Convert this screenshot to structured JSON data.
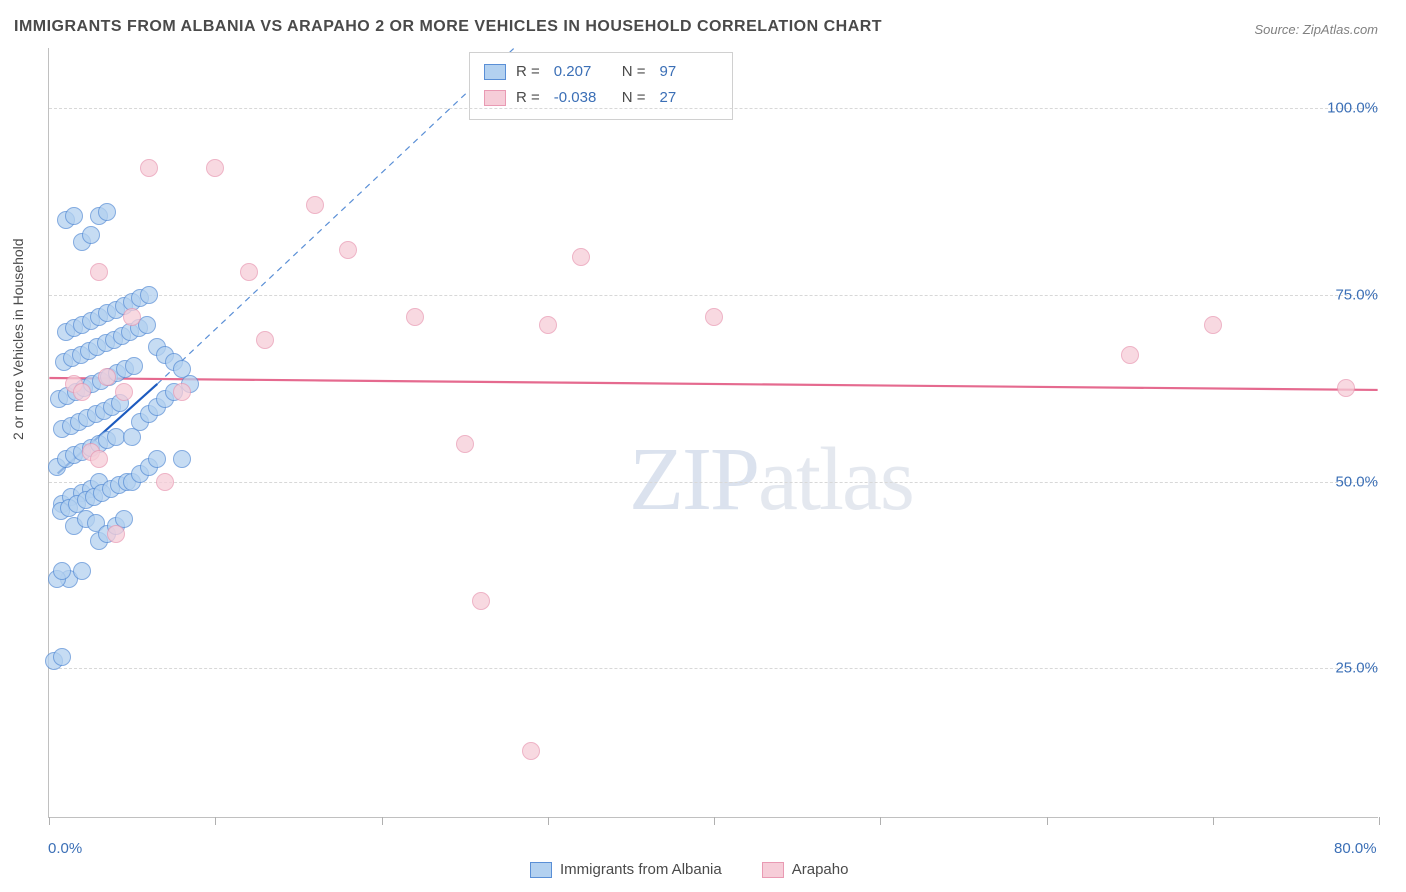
{
  "title": "IMMIGRANTS FROM ALBANIA VS ARAPAHO 2 OR MORE VEHICLES IN HOUSEHOLD CORRELATION CHART",
  "source": "Source: ZipAtlas.com",
  "watermark_bold": "ZIP",
  "watermark_thin": "atlas",
  "chart": {
    "type": "scatter",
    "background_color": "#ffffff",
    "grid_color": "#d8d8d8",
    "axis_color": "#c0c0c0",
    "tick_label_color": "#3b6fb6",
    "ylabel": "2 or more Vehicles in Household",
    "xlim": [
      0,
      80
    ],
    "ylim": [
      5,
      108
    ],
    "x_ticks": [
      0,
      10,
      20,
      30,
      40,
      50,
      60,
      70,
      80
    ],
    "x_tick_labels": {
      "0": "0.0%",
      "80": "80.0%"
    },
    "y_ticks": [
      25,
      50,
      75,
      100
    ],
    "y_tick_labels": {
      "25": "25.0%",
      "50": "50.0%",
      "75": "75.0%",
      "100": "100.0%"
    },
    "marker_radius": 9,
    "label_fontsize": 14,
    "tick_fontsize": 15,
    "title_fontsize": 16
  },
  "series": [
    {
      "name": "Immigrants from Albania",
      "fill": "#b3d1f0",
      "stroke": "#5a8fd6",
      "line_color": "#1d5bbf",
      "r_label": "R =",
      "r_value": "0.207",
      "n_label": "N =",
      "n_value": "97",
      "trend": {
        "x1": 0.5,
        "y1": 51,
        "x2": 6.5,
        "y2": 63,
        "dashed_ext": {
          "x2": 28,
          "y2": 108
        }
      },
      "points": [
        [
          0.3,
          26
        ],
        [
          0.8,
          26.5
        ],
        [
          1.2,
          37
        ],
        [
          2,
          38
        ],
        [
          1.5,
          44
        ],
        [
          2.2,
          45
        ],
        [
          2.8,
          44.5
        ],
        [
          0.8,
          47
        ],
        [
          1.3,
          48
        ],
        [
          2,
          48.5
        ],
        [
          2.5,
          49
        ],
        [
          3,
          50
        ],
        [
          0.5,
          52
        ],
        [
          1,
          53
        ],
        [
          1.5,
          53.5
        ],
        [
          2,
          54
        ],
        [
          2.5,
          54.5
        ],
        [
          3,
          55
        ],
        [
          3.5,
          55.5
        ],
        [
          4,
          56
        ],
        [
          0.8,
          57
        ],
        [
          1.3,
          57.5
        ],
        [
          1.8,
          58
        ],
        [
          2.3,
          58.5
        ],
        [
          2.8,
          59
        ],
        [
          3.3,
          59.5
        ],
        [
          3.8,
          60
        ],
        [
          4.3,
          60.5
        ],
        [
          0.6,
          61
        ],
        [
          1.1,
          61.5
        ],
        [
          1.6,
          62
        ],
        [
          2.1,
          62.5
        ],
        [
          2.6,
          63
        ],
        [
          3.1,
          63.5
        ],
        [
          3.6,
          64
        ],
        [
          4.1,
          64.5
        ],
        [
          4.6,
          65
        ],
        [
          5.1,
          65.5
        ],
        [
          0.9,
          66
        ],
        [
          1.4,
          66.5
        ],
        [
          1.9,
          67
        ],
        [
          2.4,
          67.5
        ],
        [
          2.9,
          68
        ],
        [
          3.4,
          68.5
        ],
        [
          3.9,
          69
        ],
        [
          4.4,
          69.5
        ],
        [
          4.9,
          70
        ],
        [
          5.4,
          70.5
        ],
        [
          5.9,
          71
        ],
        [
          0.7,
          46
        ],
        [
          1.2,
          46.5
        ],
        [
          1.7,
          47
        ],
        [
          2.2,
          47.5
        ],
        [
          2.7,
          48
        ],
        [
          3.2,
          48.5
        ],
        [
          3.7,
          49
        ],
        [
          4.2,
          49.5
        ],
        [
          4.7,
          50
        ],
        [
          5,
          56
        ],
        [
          5.5,
          58
        ],
        [
          6,
          59
        ],
        [
          6.5,
          60
        ],
        [
          7,
          61
        ],
        [
          7.5,
          62
        ],
        [
          8,
          53
        ],
        [
          8.5,
          63
        ],
        [
          5,
          50
        ],
        [
          5.5,
          51
        ],
        [
          6,
          52
        ],
        [
          6.5,
          53
        ],
        [
          3,
          42
        ],
        [
          3.5,
          43
        ],
        [
          4,
          44
        ],
        [
          4.5,
          45
        ],
        [
          2,
          82
        ],
        [
          2.5,
          83
        ],
        [
          3,
          85.5
        ],
        [
          3.5,
          86
        ],
        [
          1,
          85
        ],
        [
          1.5,
          85.5
        ],
        [
          1,
          70
        ],
        [
          1.5,
          70.5
        ],
        [
          2,
          71
        ],
        [
          2.5,
          71.5
        ],
        [
          3,
          72
        ],
        [
          3.5,
          72.5
        ],
        [
          4,
          73
        ],
        [
          4.5,
          73.5
        ],
        [
          5,
          74
        ],
        [
          5.5,
          74.5
        ],
        [
          6,
          75
        ],
        [
          6.5,
          68
        ],
        [
          7,
          67
        ],
        [
          7.5,
          66
        ],
        [
          8,
          65
        ],
        [
          0.5,
          37
        ],
        [
          0.8,
          38
        ]
      ]
    },
    {
      "name": "Arapaho",
      "fill": "#f6cdd8",
      "stroke": "#e99ab3",
      "line_color": "#e56a8f",
      "r_label": "R =",
      "r_value": "-0.038",
      "n_label": "N =",
      "n_value": "27",
      "trend": {
        "x1": 0,
        "y1": 63.8,
        "x2": 80,
        "y2": 62.2
      },
      "points": [
        [
          1.5,
          63
        ],
        [
          2,
          62
        ],
        [
          2.5,
          54
        ],
        [
          3,
          53
        ],
        [
          3.5,
          64
        ],
        [
          4,
          43
        ],
        [
          5,
          72
        ],
        [
          6,
          92
        ],
        [
          7,
          50
        ],
        [
          8,
          62
        ],
        [
          10,
          92
        ],
        [
          12,
          78
        ],
        [
          13,
          69
        ],
        [
          16,
          87
        ],
        [
          18,
          81
        ],
        [
          22,
          72
        ],
        [
          25,
          55
        ],
        [
          26,
          34
        ],
        [
          30,
          71
        ],
        [
          32,
          80
        ],
        [
          40,
          72
        ],
        [
          29,
          14
        ],
        [
          65,
          67
        ],
        [
          70,
          71
        ],
        [
          78,
          62.5
        ],
        [
          3,
          78
        ],
        [
          4.5,
          62
        ]
      ]
    }
  ],
  "legend": {
    "series1_label": "Immigrants from Albania",
    "series2_label": "Arapaho"
  }
}
